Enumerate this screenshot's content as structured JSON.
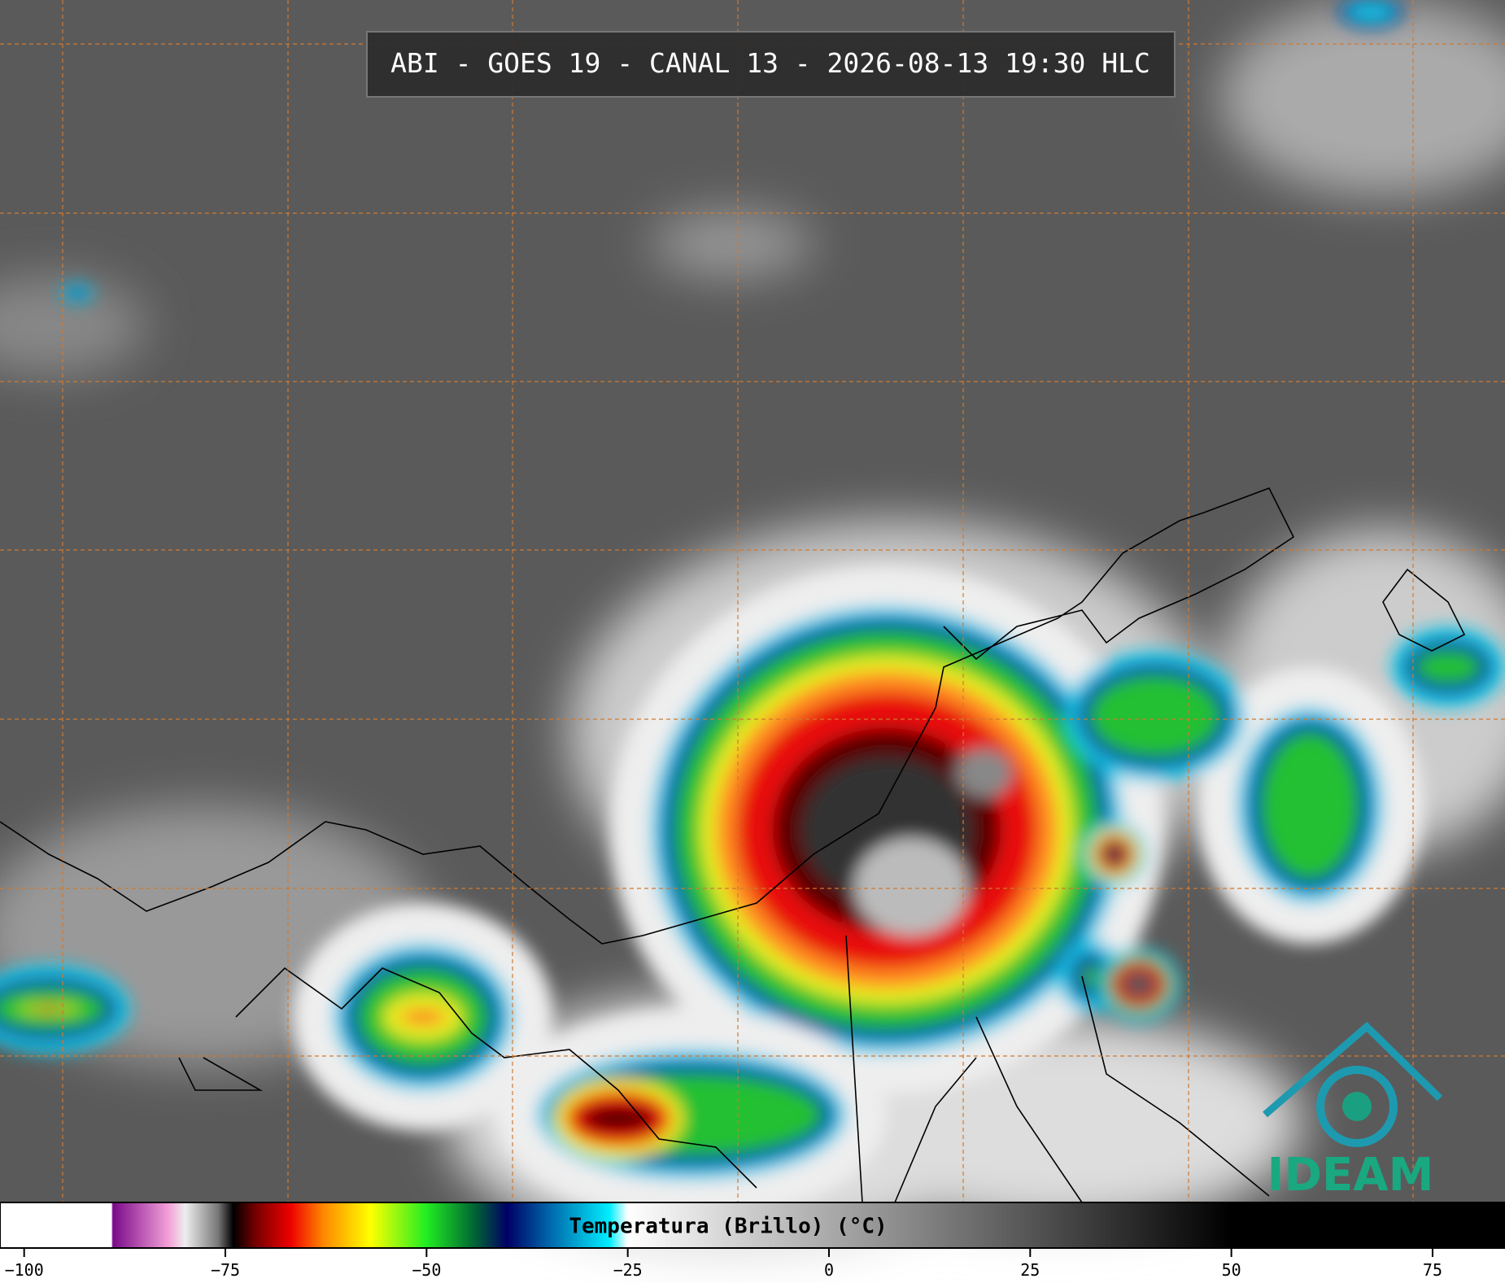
{
  "header": {
    "title": "ABI - GOES 19 - CANAL 13 - 2026-08-13 19:30 HLC"
  },
  "logo": {
    "text": "IDEAM"
  },
  "chart_data": {
    "type": "colorbar",
    "label": "Temperatura (Brillo) (°C)",
    "xlim": [
      -103,
      84
    ],
    "xticks": [
      {
        "value": -100,
        "label": "−100"
      },
      {
        "value": -75,
        "label": "−75"
      },
      {
        "value": -50,
        "label": "−50"
      },
      {
        "value": -25,
        "label": "−25"
      },
      0,
      25,
      50,
      75
    ]
  }
}
